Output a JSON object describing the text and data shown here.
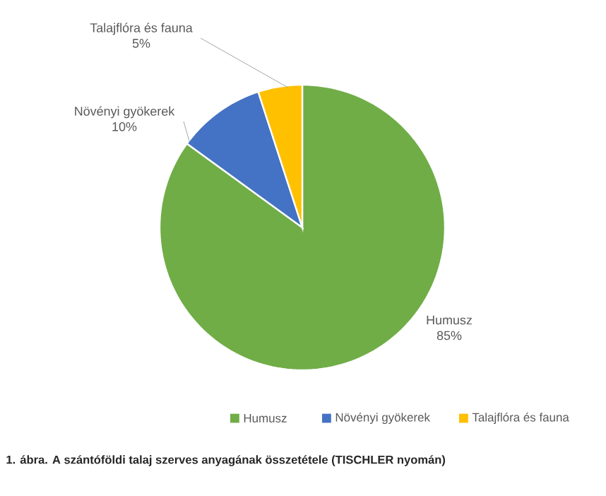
{
  "chart_data": {
    "type": "pie",
    "categories": [
      "Humusz",
      "Növényi gyökerek",
      "Talajflóra és fauna"
    ],
    "values": [
      85,
      10,
      5
    ],
    "value_labels": [
      "85%",
      "10%",
      "5%"
    ],
    "colors": [
      "#70ad47",
      "#4472c4",
      "#ffc000"
    ],
    "legend": "bottom",
    "annotations": [
      "1. ábra. A szántóföldi talaj szerves anyagának összetétele (TISCHLER nyomán)"
    ]
  }
}
